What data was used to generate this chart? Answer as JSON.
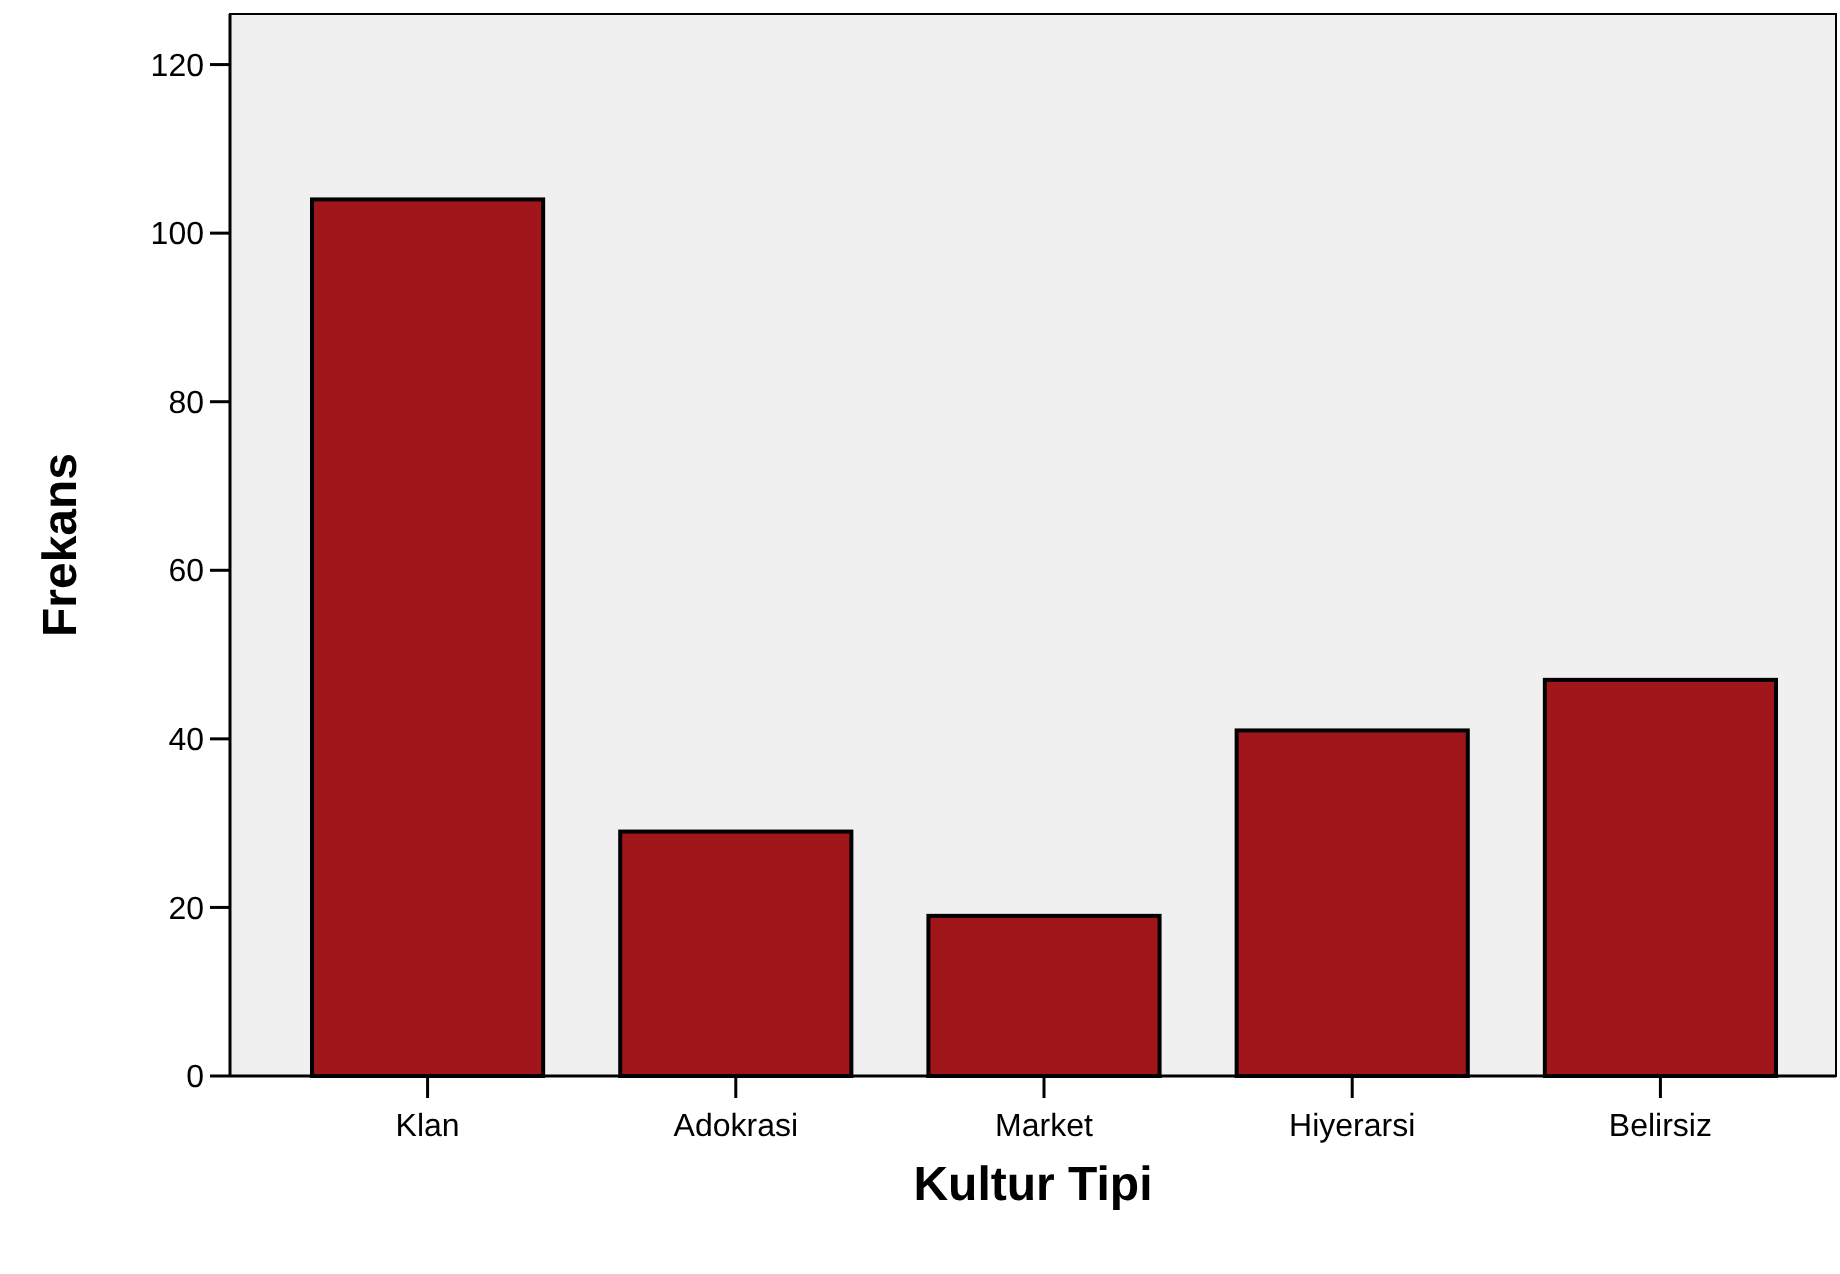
{
  "chart_data": {
    "type": "bar",
    "xlabel": "Kultur Tipi",
    "ylabel": "Frekans",
    "categories": [
      "Klan",
      "Adokrasi",
      "Market",
      "Hiyerarsi",
      "Belirsiz"
    ],
    "values": [
      104,
      29,
      19,
      41,
      47
    ],
    "color": "#a0161a",
    "ylim": [
      0,
      126
    ],
    "yticks": [
      0,
      20,
      40,
      60,
      80,
      100,
      120
    ],
    "grid": false
  }
}
